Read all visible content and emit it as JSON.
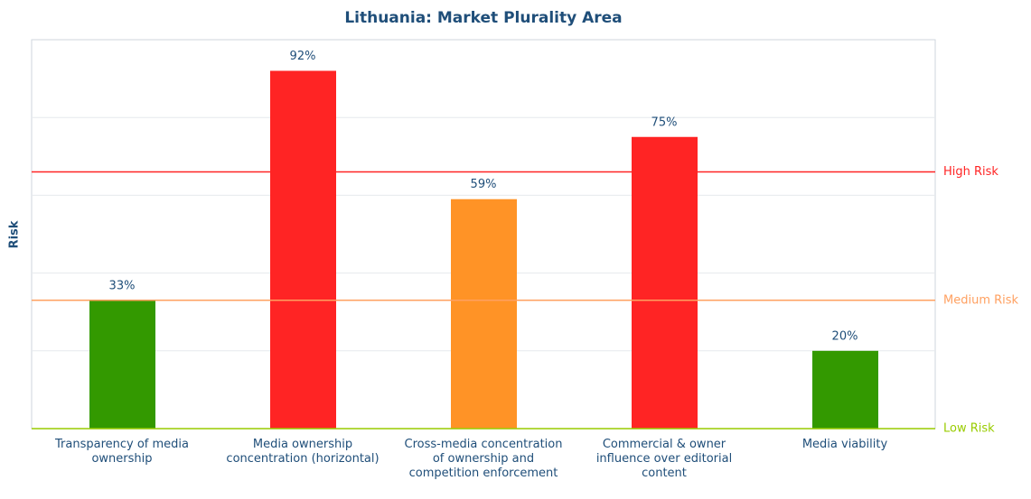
{
  "chart_data": {
    "type": "bar",
    "title": "Lithuania: Market Plurality Area",
    "ylabel": "Risk",
    "categories": [
      "Transparency of media ownership",
      "Media ownership concentration (horizontal)",
      "Cross-media concentration of ownership and competition enforcement",
      "Commercial & owner influence over editorial content",
      "Media viability"
    ],
    "values": [
      33,
      92,
      59,
      75,
      20
    ],
    "value_labels": [
      "33%",
      "92%",
      "59%",
      "75%",
      "20%"
    ],
    "colors": [
      "#339900",
      "#ff2424",
      "#ff9326",
      "#ff2424",
      "#339900"
    ],
    "ylim": [
      0,
      100
    ],
    "yticks": [
      20,
      40,
      60,
      80
    ],
    "grid": true,
    "thresholds": [
      {
        "label": "High Risk",
        "value": 66,
        "color": "#ff2424"
      },
      {
        "label": "Medium Risk",
        "value": 33,
        "color": "#ffa060"
      },
      {
        "label": "Low Risk",
        "value": 0,
        "color": "#99cc00"
      }
    ]
  }
}
